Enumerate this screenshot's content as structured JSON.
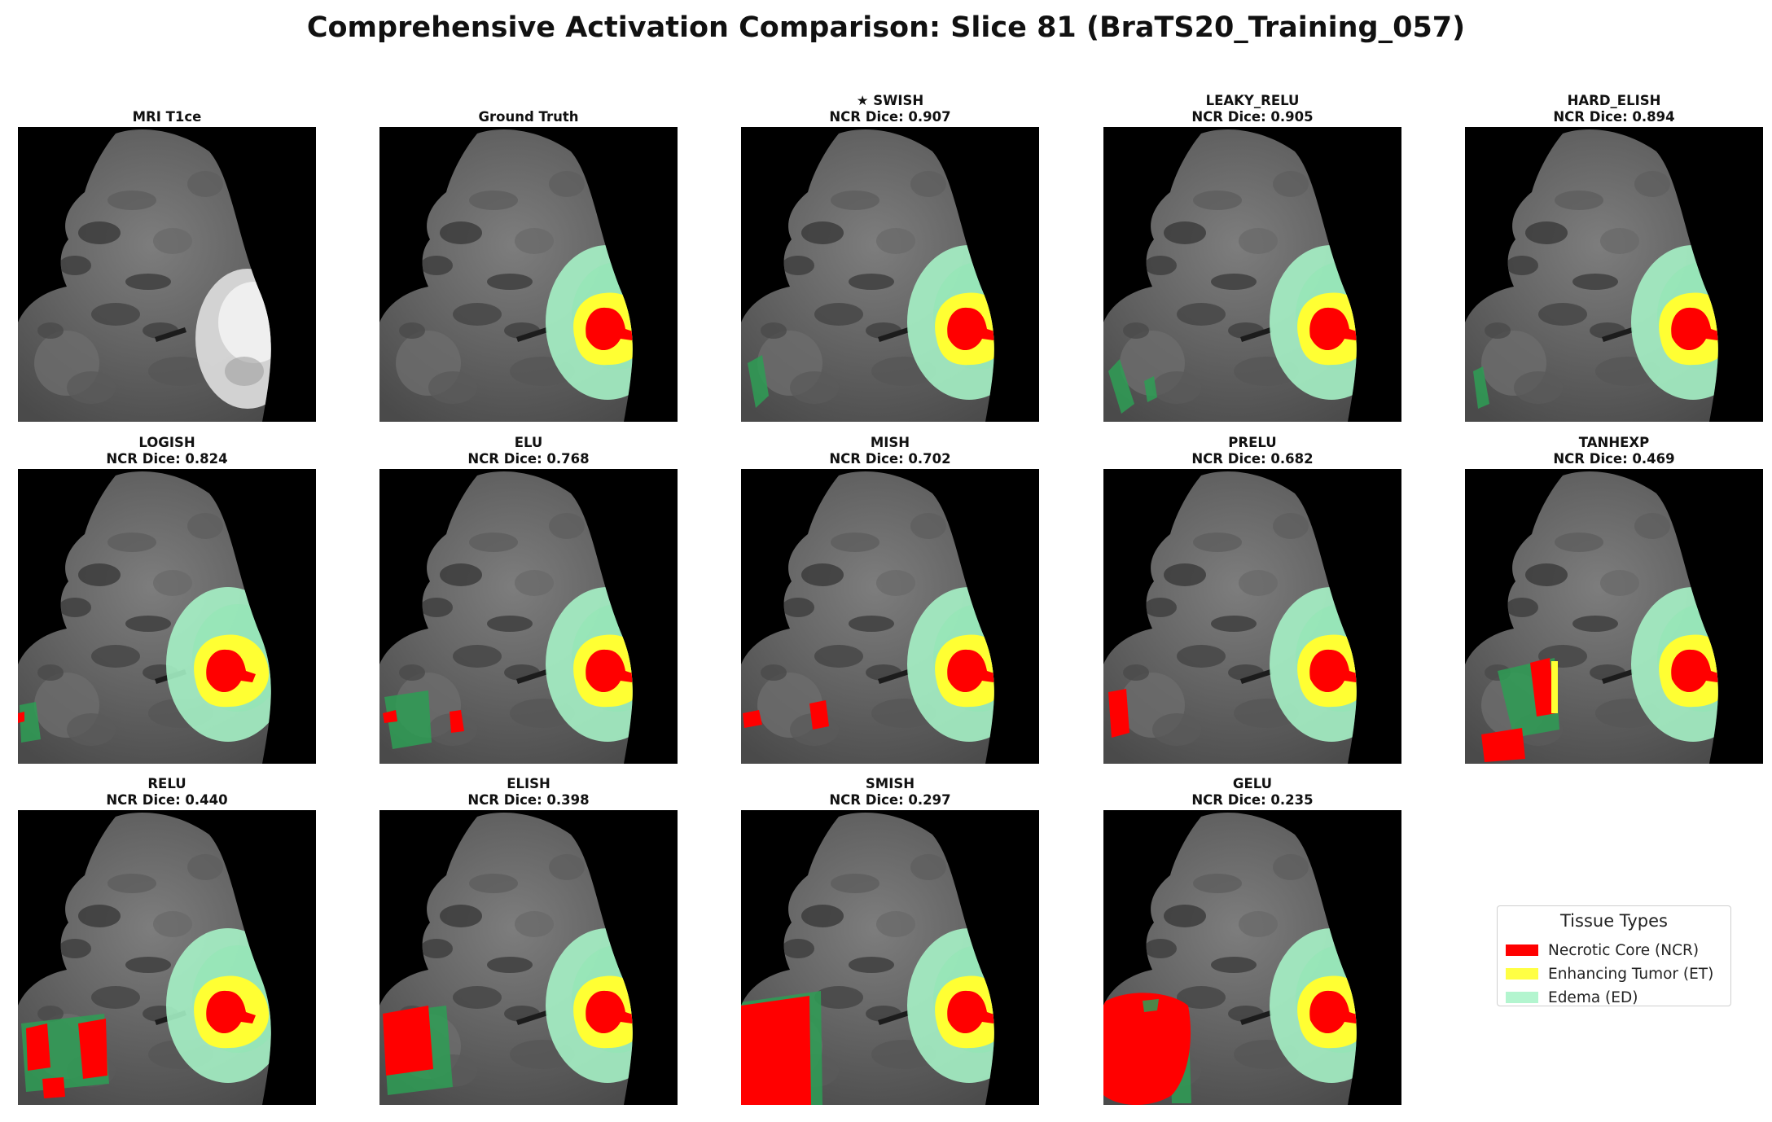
{
  "title": "Comprehensive Activation Comparison: Slice 81 (BraTS20_Training_057)",
  "colors": {
    "ncr": "#ff0000",
    "et": "#ffff33",
    "ed": "#a7f5c8",
    "ed_pred": "#2e9e55",
    "background": "#000000"
  },
  "panels": [
    {
      "line1": "MRI T1ce",
      "line2": "",
      "kind": "mri"
    },
    {
      "line1": "Ground Truth",
      "line2": "",
      "kind": "gt"
    },
    {
      "line1": "★ SWISH",
      "line2": "NCR Dice: 0.907",
      "kind": "pred"
    },
    {
      "line1": "LEAKY_RELU",
      "line2": "NCR Dice: 0.905",
      "kind": "pred"
    },
    {
      "line1": "HARD_ELISH",
      "line2": "NCR Dice: 0.894",
      "kind": "pred"
    },
    {
      "line1": "LOGISH",
      "line2": "NCR Dice: 0.824",
      "kind": "pred"
    },
    {
      "line1": "ELU",
      "line2": "NCR Dice: 0.768",
      "kind": "pred"
    },
    {
      "line1": "MISH",
      "line2": "NCR Dice: 0.702",
      "kind": "pred"
    },
    {
      "line1": "PRELU",
      "line2": "NCR Dice: 0.682",
      "kind": "pred"
    },
    {
      "line1": "TANHEXP",
      "line2": "NCR Dice: 0.469",
      "kind": "pred"
    },
    {
      "line1": "RELU",
      "line2": "NCR Dice: 0.440",
      "kind": "pred"
    },
    {
      "line1": "ELISH",
      "line2": "NCR Dice: 0.398",
      "kind": "pred"
    },
    {
      "line1": "SMISH",
      "line2": "NCR Dice: 0.297",
      "kind": "pred"
    },
    {
      "line1": "GELU",
      "line2": "NCR Dice: 0.235",
      "kind": "pred"
    }
  ],
  "legend": {
    "title": "Tissue Types",
    "items": [
      {
        "label": "Necrotic Core (NCR)",
        "color": "#ff0000"
      },
      {
        "label": "Enhancing Tumor (ET)",
        "color": "#ffff44"
      },
      {
        "label": "Edema (ED)",
        "color": "#b3f5cf"
      }
    ]
  }
}
